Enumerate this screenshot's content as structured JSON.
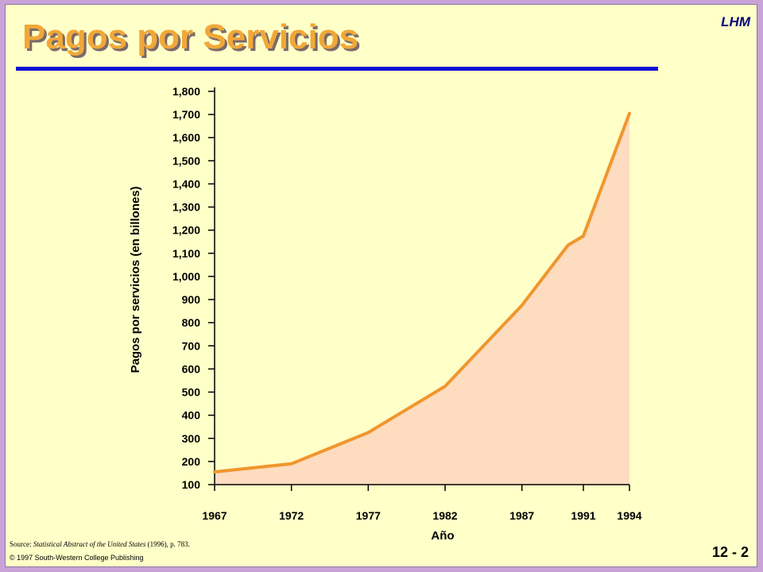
{
  "header": {
    "title": "Pagos por Servicios",
    "tag": "LHM"
  },
  "footer": {
    "source_prefix": "Source: ",
    "source_italic": "Statistical Abstract of the United States",
    "source_suffix": " (1996), p. 783.",
    "copyright": "© 1997 South-Western College Publishing",
    "page": "12 - 2"
  },
  "colors": {
    "line": "#f0962e",
    "fill": "#fddcc0",
    "rule": "#1010d0",
    "title": "#f0a838",
    "background": "#ffffc8"
  },
  "chart_data": {
    "type": "area",
    "title": "",
    "xlabel": "Año",
    "ylabel": "Pagos por servicios (en billones)",
    "x": [
      1967,
      1972,
      1977,
      1982,
      1987,
      1991,
      1994
    ],
    "x_tick_labels": [
      "1967",
      "1972",
      "1977",
      "1982",
      "1987",
      "1991",
      "1994"
    ],
    "y_tick_labels": [
      "100",
      "200",
      "300",
      "400",
      "500",
      "600",
      "700",
      "800",
      "900",
      "1,000",
      "1,100",
      "1,200",
      "1,300",
      "1,400",
      "1,500",
      "1,600",
      "1,700",
      "1,800"
    ],
    "y_ticks": [
      100,
      200,
      300,
      400,
      500,
      600,
      700,
      800,
      900,
      1000,
      1100,
      1200,
      1300,
      1400,
      1500,
      1600,
      1700,
      1800
    ],
    "ylim": [
      100,
      1800
    ],
    "points": [
      {
        "x": 1967,
        "y": 155
      },
      {
        "x": 1972,
        "y": 190
      },
      {
        "x": 1977,
        "y": 325
      },
      {
        "x": 1982,
        "y": 525
      },
      {
        "x": 1987,
        "y": 875
      },
      {
        "x": 1990,
        "y": 1135
      },
      {
        "x": 1991,
        "y": 1175
      },
      {
        "x": 1994,
        "y": 1705
      }
    ],
    "grid": false,
    "legend": "none"
  }
}
